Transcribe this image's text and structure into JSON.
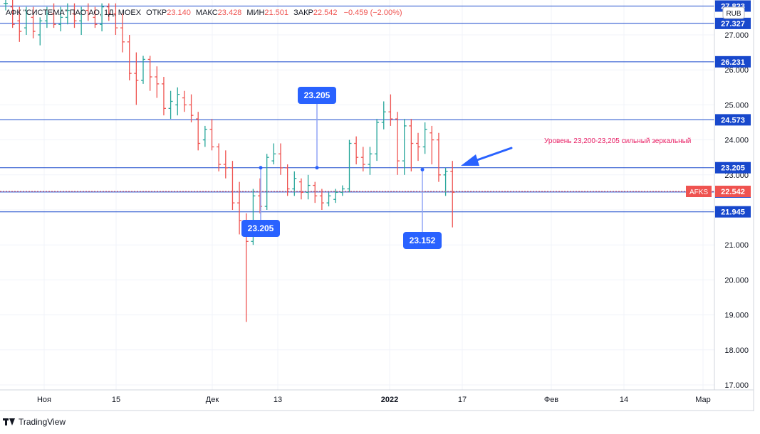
{
  "legend": {
    "name": "АФК \"СИСТЕМА\" ПАО АО, 1Д, MOEX",
    "open_label": "ОТКР",
    "open": "23.140",
    "high_label": "МАКС",
    "high": "23.428",
    "low_label": "МИН",
    "low": "21.501",
    "close_label": "ЗАКР",
    "close": "22.542",
    "change": "−0.459 (−2.00%)"
  },
  "currency_badge": "RUB",
  "ticker_badge": "AFKS",
  "annotation_text": "Уровень 23,200-23,205 сильный зеркальный",
  "footer_brand": "TradingView",
  "colors": {
    "up": "#26a69a",
    "down": "#ef5350",
    "level": "#1848cc",
    "callout": "#2962ff",
    "annotation": "#e91e63"
  },
  "chart_data": {
    "type": "ohlc",
    "title": "АФК \"СИСТЕМА\" ПАО АО, 1Д, MOEX",
    "currency": "RUB",
    "ylim": [
      16.8,
      27.9
    ],
    "y_ticks": [
      "17.000",
      "18.000",
      "19.000",
      "20.000",
      "21.000",
      "22.000",
      "23.000",
      "24.000",
      "25.000",
      "26.000",
      "27.000"
    ],
    "x_ticks": [
      "Ноя",
      "15",
      "Дек",
      "13",
      "2022",
      "17",
      "Фев",
      "14",
      "Мар"
    ],
    "horizontal_levels": [
      "27.823",
      "27.327",
      "26.231",
      "24.573",
      "23.205",
      "22.510",
      "21.945"
    ],
    "last_price": "22.542",
    "callouts": [
      "23.205",
      "23.205",
      "23.152"
    ],
    "bars": [
      [
        27.9,
        28.0,
        27.7,
        27.9
      ],
      [
        27.8,
        28.0,
        27.2,
        27.3
      ],
      [
        27.4,
        27.8,
        26.8,
        27.1
      ],
      [
        27.2,
        27.8,
        27.0,
        27.6
      ],
      [
        27.5,
        27.8,
        26.9,
        27.1
      ],
      [
        27.0,
        27.5,
        26.7,
        27.4
      ],
      [
        27.4,
        27.8,
        27.2,
        27.6
      ],
      [
        27.6,
        27.9,
        27.2,
        27.3
      ],
      [
        27.3,
        27.8,
        27.1,
        27.5
      ],
      [
        27.5,
        27.9,
        27.3,
        27.7
      ],
      [
        27.6,
        27.9,
        27.2,
        27.4
      ],
      [
        27.4,
        27.8,
        27.0,
        27.7
      ],
      [
        27.7,
        27.9,
        27.4,
        27.6
      ],
      [
        27.5,
        27.8,
        27.2,
        27.3
      ],
      [
        27.3,
        27.9,
        27.1,
        27.8
      ],
      [
        27.8,
        27.9,
        27.4,
        27.6
      ],
      [
        27.6,
        27.9,
        27.0,
        27.2
      ],
      [
        27.2,
        27.6,
        26.5,
        26.8
      ],
      [
        26.8,
        27.0,
        25.7,
        25.9
      ],
      [
        25.9,
        26.5,
        25.0,
        25.7
      ],
      [
        25.7,
        26.4,
        25.6,
        26.3
      ],
      [
        26.3,
        26.4,
        25.4,
        25.8
      ],
      [
        25.8,
        26.1,
        25.2,
        25.6
      ],
      [
        25.6,
        25.8,
        24.7,
        24.9
      ],
      [
        24.9,
        25.4,
        24.6,
        25.1
      ],
      [
        25.0,
        25.5,
        24.7,
        25.3
      ],
      [
        25.2,
        25.4,
        24.8,
        25.0
      ],
      [
        25.0,
        25.3,
        24.5,
        24.7
      ],
      [
        24.6,
        24.8,
        23.7,
        23.9
      ],
      [
        24.0,
        24.4,
        23.8,
        24.3
      ],
      [
        24.3,
        24.6,
        23.7,
        23.8
      ],
      [
        23.8,
        23.9,
        23.1,
        23.3
      ],
      [
        23.3,
        23.7,
        22.9,
        23.2
      ],
      [
        23.2,
        23.4,
        22.0,
        22.2
      ],
      [
        22.2,
        22.8,
        21.3,
        21.7
      ],
      [
        21.7,
        21.9,
        18.8,
        21.1
      ],
      [
        21.1,
        22.6,
        21.0,
        22.4
      ],
      [
        22.4,
        22.9,
        21.9,
        22.1
      ],
      [
        22.1,
        23.6,
        22.0,
        23.5
      ],
      [
        23.4,
        23.9,
        23.3,
        23.6
      ],
      [
        23.6,
        23.9,
        23.0,
        23.2
      ],
      [
        23.2,
        23.3,
        22.4,
        22.6
      ],
      [
        22.6,
        23.1,
        22.4,
        22.9
      ],
      [
        22.8,
        22.9,
        22.3,
        22.5
      ],
      [
        22.5,
        23.0,
        22.3,
        22.7
      ],
      [
        22.7,
        22.8,
        22.2,
        22.4
      ],
      [
        22.4,
        22.6,
        22.0,
        22.2
      ],
      [
        22.2,
        22.5,
        22.1,
        22.4
      ],
      [
        22.3,
        22.6,
        22.2,
        22.5
      ],
      [
        22.5,
        22.7,
        22.4,
        22.6
      ],
      [
        22.6,
        24.0,
        22.5,
        23.9
      ],
      [
        23.9,
        24.1,
        23.3,
        23.5
      ],
      [
        23.5,
        23.8,
        23.1,
        23.3
      ],
      [
        23.3,
        23.8,
        23.0,
        23.6
      ],
      [
        23.6,
        24.6,
        23.4,
        24.5
      ],
      [
        24.5,
        25.1,
        24.3,
        24.8
      ],
      [
        24.8,
        25.3,
        24.4,
        24.6
      ],
      [
        24.6,
        24.8,
        23.0,
        23.4
      ],
      [
        23.4,
        24.6,
        23.0,
        24.4
      ],
      [
        24.4,
        24.6,
        23.1,
        23.9
      ],
      [
        23.9,
        24.2,
        23.4,
        23.8
      ],
      [
        23.8,
        24.5,
        23.6,
        24.3
      ],
      [
        24.2,
        24.4,
        23.3,
        24.0
      ],
      [
        24.0,
        24.2,
        22.8,
        23.0
      ],
      [
        23.0,
        23.2,
        22.4,
        23.1
      ],
      [
        23.1,
        23.4,
        21.5,
        22.5
      ]
    ]
  }
}
